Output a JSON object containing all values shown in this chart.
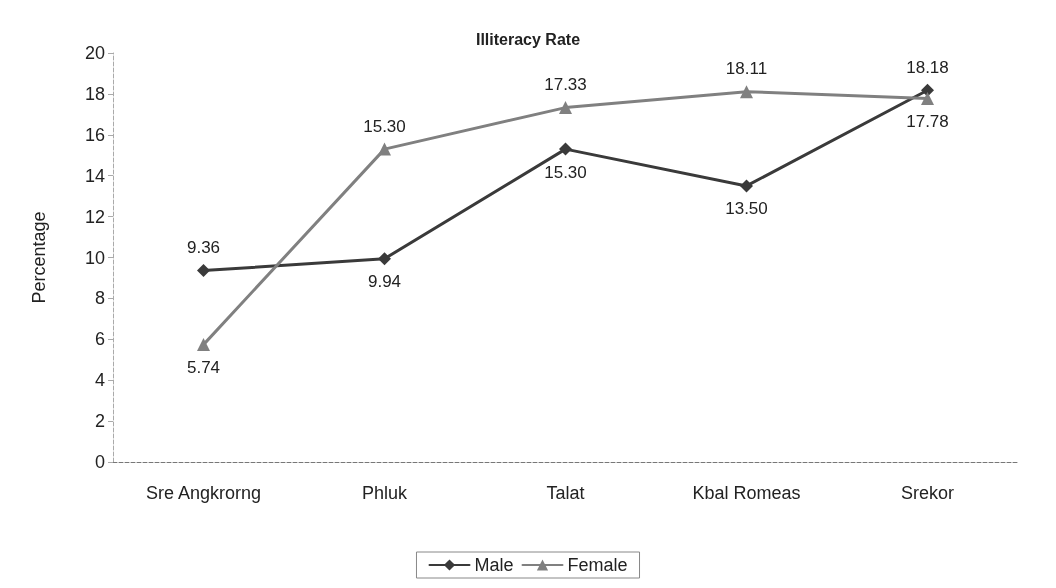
{
  "chart_data": {
    "type": "line",
    "title": "Illiteracy Rate",
    "ylabel": "Percentage",
    "categories": [
      "Sre Angkrorng",
      "Phluk",
      "Talat",
      "Kbal Romeas",
      "Srekor"
    ],
    "series": [
      {
        "name": "Male",
        "color": "#3a3a3a",
        "marker": "diamond",
        "values": [
          9.36,
          9.94,
          15.3,
          13.5,
          18.18
        ],
        "value_labels": [
          "9.36",
          "9.94",
          "15.30",
          "13.50",
          "18.18"
        ]
      },
      {
        "name": "Female",
        "color": "#808080",
        "marker": "triangle",
        "values": [
          5.74,
          15.3,
          17.33,
          18.11,
          17.78
        ],
        "value_labels": [
          "5.74",
          "15.30",
          "17.33",
          "18.11",
          "17.78"
        ]
      }
    ],
    "ylim": [
      0,
      20
    ],
    "yticks": [
      0,
      2,
      4,
      6,
      8,
      10,
      12,
      14,
      16,
      18,
      20
    ],
    "grid": false,
    "legend": "bottom"
  }
}
